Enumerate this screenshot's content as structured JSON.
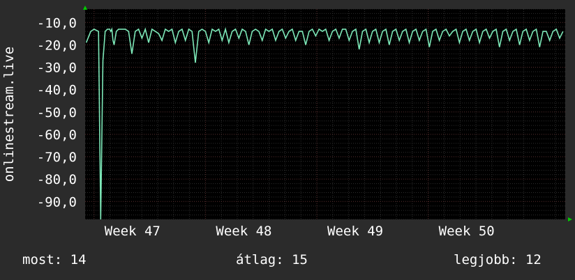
{
  "chart_data": {
    "type": "line",
    "title": "",
    "ylabel": "onlinestream.live",
    "xlabel": "",
    "ylim": [
      -98,
      -4
    ],
    "y_ticks": [
      {
        "value": -10,
        "label": "-10,0"
      },
      {
        "value": -20,
        "label": "-20,0"
      },
      {
        "value": -30,
        "label": "-30,0"
      },
      {
        "value": -40,
        "label": "-40,0"
      },
      {
        "value": -50,
        "label": "-50,0"
      },
      {
        "value": -60,
        "label": "-60,0"
      },
      {
        "value": -70,
        "label": "-70,0"
      },
      {
        "value": -80,
        "label": "-80,0"
      },
      {
        "value": -90,
        "label": "-90,0"
      }
    ],
    "x_ticks": [
      {
        "week": 47,
        "label": "Week 47"
      },
      {
        "week": 48,
        "label": "Week 48"
      },
      {
        "week": 49,
        "label": "Week 49"
      },
      {
        "week": 50,
        "label": "Week 50"
      }
    ],
    "x_range_weeks": [
      46.92,
      51.23
    ],
    "grid": true,
    "series": [
      {
        "color": "#7de8b8",
        "x": [
          46.93,
          46.97,
          47.0,
          47.02,
          47.04,
          47.06,
          47.08,
          47.1,
          47.12,
          47.14,
          47.15,
          47.16,
          47.17,
          47.18,
          47.2,
          47.22,
          47.25,
          47.28,
          47.31,
          47.34,
          47.37,
          47.4,
          47.43,
          47.46,
          47.49,
          47.52,
          47.55,
          47.58,
          47.61,
          47.64,
          47.67,
          47.7,
          47.73,
          47.76,
          47.79,
          47.82,
          47.85,
          47.88,
          47.91,
          47.94,
          47.97,
          48.0,
          48.03,
          48.06,
          48.09,
          48.12,
          48.15,
          48.18,
          48.21,
          48.24,
          48.27,
          48.3,
          48.33,
          48.36,
          48.39,
          48.42,
          48.45,
          48.48,
          48.51,
          48.54,
          48.57,
          48.6,
          48.63,
          48.66,
          48.69,
          48.72,
          48.75,
          48.78,
          48.81,
          48.84,
          48.87,
          48.9,
          48.93,
          48.96,
          48.99,
          49.02,
          49.05,
          49.08,
          49.11,
          49.14,
          49.17,
          49.2,
          49.23,
          49.26,
          49.29,
          49.32,
          49.35,
          49.38,
          49.41,
          49.44,
          49.47,
          49.5,
          49.53,
          49.56,
          49.59,
          49.62,
          49.65,
          49.68,
          49.71,
          49.74,
          49.77,
          49.8,
          49.83,
          49.86,
          49.89,
          49.92,
          49.95,
          49.98,
          50.01,
          50.04,
          50.07,
          50.1,
          50.13,
          50.16,
          50.19,
          50.22,
          50.25,
          50.28,
          50.31,
          50.34,
          50.37,
          50.4,
          50.43,
          50.46,
          50.49,
          50.52,
          50.55,
          50.58,
          50.61,
          50.64,
          50.67,
          50.7,
          50.73,
          50.76,
          50.79,
          50.82,
          50.85,
          50.88,
          50.91,
          50.94,
          50.97,
          51.0,
          51.03,
          51.06,
          51.09,
          51.12,
          51.15,
          51.18,
          51.21
        ],
        "y": [
          -19,
          -14,
          -13,
          -13.5,
          -14,
          -98,
          -27,
          -14,
          -13,
          -13,
          -14,
          -13,
          -18,
          -20,
          -14,
          -13,
          -13,
          -13,
          -14,
          -24,
          -14,
          -13,
          -17,
          -13,
          -19,
          -13,
          -14,
          -15,
          -18,
          -13,
          -14,
          -13,
          -19,
          -14,
          -13,
          -18,
          -13,
          -14,
          -28,
          -14,
          -13,
          -14,
          -19,
          -13,
          -14,
          -13,
          -18,
          -13,
          -19,
          -14,
          -13,
          -17,
          -13,
          -14,
          -20,
          -14,
          -13,
          -14,
          -18,
          -13,
          -14,
          -13,
          -18,
          -14,
          -13,
          -17,
          -14,
          -13,
          -18,
          -14,
          -14,
          -20,
          -14,
          -13,
          -16,
          -13,
          -14,
          -13,
          -18,
          -14,
          -13,
          -17,
          -13,
          -13,
          -18,
          -14,
          -13,
          -22,
          -14,
          -13,
          -19,
          -14,
          -13,
          -19,
          -14,
          -13,
          -20,
          -14,
          -13,
          -18,
          -14,
          -13,
          -19,
          -14,
          -13,
          -18,
          -14,
          -13,
          -21,
          -14,
          -13,
          -18,
          -14,
          -13,
          -16,
          -14,
          -13,
          -19,
          -14,
          -13,
          -18,
          -14,
          -13,
          -19,
          -14,
          -13,
          -17,
          -14,
          -13,
          -21,
          -14,
          -13,
          -18,
          -14,
          -13,
          -20,
          -14,
          -13,
          -18,
          -14,
          -13,
          -21,
          -14,
          -14,
          -18,
          -14,
          -13,
          -17,
          -14
        ]
      }
    ]
  },
  "stats": {
    "current": "most: 14",
    "average": "átlag: 15",
    "best": "legjobb: 12"
  },
  "colors": {
    "background": "#2b2b2b",
    "plot_background": "#000000",
    "grid_major": "#5a3030",
    "grid_minor": "#2e2e2e",
    "axis_arrow": "#00cc00",
    "line": "#7de8b8",
    "text": "#ffffff"
  }
}
